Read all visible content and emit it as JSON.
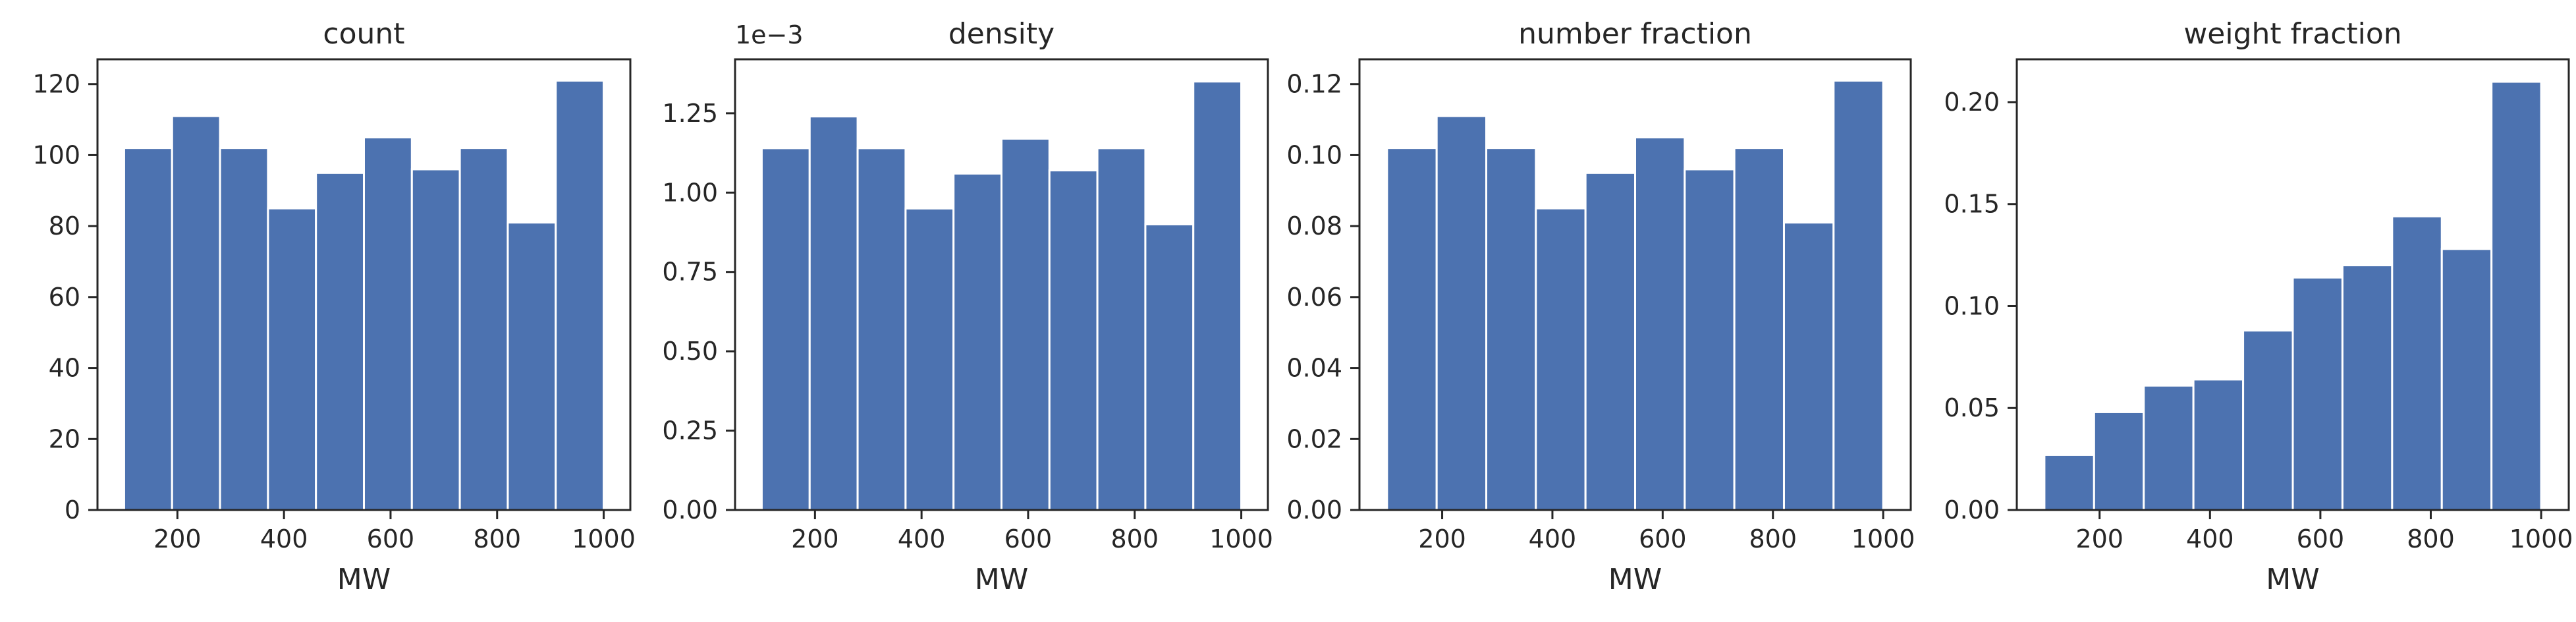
{
  "chart_data": [
    {
      "type": "bar",
      "title": "count",
      "xlabel": "MW",
      "ylabel": "",
      "x_ticks": [
        "200",
        "400",
        "600",
        "800",
        "1000"
      ],
      "y_ticks": [
        "0",
        "20",
        "40",
        "60",
        "80",
        "100",
        "120"
      ],
      "bins": [
        [
          100,
          190
        ],
        [
          190,
          280
        ],
        [
          280,
          370
        ],
        [
          370,
          460
        ],
        [
          460,
          550
        ],
        [
          550,
          640
        ],
        [
          640,
          730
        ],
        [
          730,
          820
        ],
        [
          820,
          910
        ],
        [
          910,
          1000
        ]
      ],
      "values": [
        102,
        111,
        102,
        85,
        95,
        105,
        96,
        102,
        81,
        121
      ],
      "xlim": [
        50,
        1050
      ],
      "ylim": [
        0,
        127
      ],
      "color": "#4c72b0"
    },
    {
      "type": "bar",
      "title": "density",
      "xlabel": "MW",
      "ylabel": "",
      "offset_text": "1e−3",
      "x_ticks": [
        "200",
        "400",
        "600",
        "800",
        "1000"
      ],
      "y_ticks": [
        "0.00",
        "0.25",
        "0.50",
        "0.75",
        "1.00",
        "1.25"
      ],
      "bins": [
        [
          100,
          190
        ],
        [
          190,
          280
        ],
        [
          280,
          370
        ],
        [
          370,
          460
        ],
        [
          460,
          550
        ],
        [
          550,
          640
        ],
        [
          640,
          730
        ],
        [
          730,
          820
        ],
        [
          820,
          910
        ],
        [
          910,
          1000
        ]
      ],
      "values": [
        1.14,
        1.24,
        1.14,
        0.95,
        1.06,
        1.17,
        1.07,
        1.14,
        0.9,
        1.35
      ],
      "xlim": [
        50,
        1050
      ],
      "ylim": [
        0,
        1.42
      ],
      "color": "#4c72b0"
    },
    {
      "type": "bar",
      "title": "number fraction",
      "xlabel": "MW",
      "ylabel": "",
      "x_ticks": [
        "200",
        "400",
        "600",
        "800",
        "1000"
      ],
      "y_ticks": [
        "0.00",
        "0.02",
        "0.04",
        "0.06",
        "0.08",
        "0.10",
        "0.12"
      ],
      "bins": [
        [
          100,
          190
        ],
        [
          190,
          280
        ],
        [
          280,
          370
        ],
        [
          370,
          460
        ],
        [
          460,
          550
        ],
        [
          550,
          640
        ],
        [
          640,
          730
        ],
        [
          730,
          820
        ],
        [
          820,
          910
        ],
        [
          910,
          1000
        ]
      ],
      "values": [
        0.102,
        0.111,
        0.102,
        0.085,
        0.095,
        0.105,
        0.096,
        0.102,
        0.081,
        0.121
      ],
      "xlim": [
        50,
        1050
      ],
      "ylim": [
        0,
        0.127
      ],
      "color": "#4c72b0"
    },
    {
      "type": "bar",
      "title": "weight fraction",
      "xlabel": "MW",
      "ylabel": "",
      "x_ticks": [
        "200",
        "400",
        "600",
        "800",
        "1000"
      ],
      "y_ticks": [
        "0.00",
        "0.05",
        "0.10",
        "0.15",
        "0.20"
      ],
      "bins": [
        [
          100,
          190
        ],
        [
          190,
          280
        ],
        [
          280,
          370
        ],
        [
          370,
          460
        ],
        [
          460,
          550
        ],
        [
          550,
          640
        ],
        [
          640,
          730
        ],
        [
          730,
          820
        ],
        [
          820,
          910
        ],
        [
          910,
          1000
        ]
      ],
      "values": [
        0.027,
        0.048,
        0.061,
        0.064,
        0.088,
        0.114,
        0.12,
        0.144,
        0.128,
        0.21
      ],
      "xlim": [
        50,
        1050
      ],
      "ylim": [
        0,
        0.221
      ],
      "color": "#4c72b0"
    }
  ]
}
